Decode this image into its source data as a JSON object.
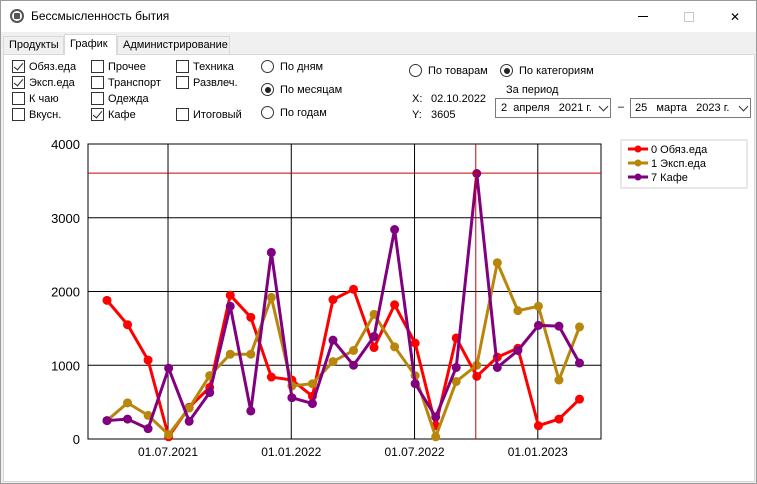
{
  "window": {
    "title": "Бессмысленность бытия",
    "close_glyph": "✕"
  },
  "tabs": [
    {
      "label": "Продукты",
      "active": false
    },
    {
      "label": "График",
      "active": true
    },
    {
      "label": "Администрирование",
      "active": false
    }
  ],
  "categories_checkboxes": [
    {
      "label": "Обяз.еда",
      "checked": true
    },
    {
      "label": "Эксп.еда",
      "checked": true
    },
    {
      "label": "К чаю",
      "checked": false
    },
    {
      "label": "Вкусн.",
      "checked": false
    },
    {
      "label": "Прочее",
      "checked": false
    },
    {
      "label": "Транспорт",
      "checked": false
    },
    {
      "label": "Одежда",
      "checked": false
    },
    {
      "label": "Кафе",
      "checked": true
    },
    {
      "label": "Техника",
      "checked": false
    },
    {
      "label": "Развлеч.",
      "checked": false
    },
    {
      "label": "Итоговый",
      "checked": false
    }
  ],
  "period_radios": [
    {
      "label": "По дням",
      "selected": false
    },
    {
      "label": "По месяцам",
      "selected": true
    },
    {
      "label": "По годам",
      "selected": false
    }
  ],
  "group_radios": [
    {
      "label": "По товарам",
      "selected": false
    },
    {
      "label": "По категориям",
      "selected": true
    }
  ],
  "cursor": {
    "x_label": "X:",
    "x_value": "02.10.2022",
    "y_label": "Y:",
    "y_value": "3605"
  },
  "period": {
    "label": "За период",
    "from": "2  апреля   2021 г.",
    "dash": "–",
    "to": "25   марта   2023 г."
  },
  "chart_data": {
    "type": "line",
    "y_ticks": [
      "0",
      "1000",
      "2000",
      "3000",
      "4000"
    ],
    "x_ticks": [
      "01.07.2021",
      "01.01.2022",
      "01.07.2022",
      "01.01.2023"
    ],
    "ylim": [
      0,
      4000
    ],
    "x_months": [
      "2021-04",
      "2021-05",
      "2021-06",
      "2021-07",
      "2021-08",
      "2021-09",
      "2021-10",
      "2021-11",
      "2021-12",
      "2022-01",
      "2022-02",
      "2022-03",
      "2022-04",
      "2022-05",
      "2022-06",
      "2022-07",
      "2022-08",
      "2022-09",
      "2022-10",
      "2022-11",
      "2022-12",
      "2023-01",
      "2023-02",
      "2023-03"
    ],
    "crosshair": {
      "x": "2022-10",
      "y": 3605
    },
    "legend": "top-right",
    "series": [
      {
        "name": "0 Обяз.еда",
        "color": "#ff0000",
        "values": [
          1880,
          1550,
          1070,
          30,
          430,
          700,
          1950,
          1650,
          840,
          800,
          580,
          1890,
          2030,
          1240,
          1820,
          1300,
          180,
          1370,
          850,
          1110,
          1230,
          180,
          270,
          540
        ]
      },
      {
        "name": "1 Эксп.еда",
        "color": "#b8860b",
        "values": [
          250,
          490,
          320,
          60,
          420,
          860,
          1150,
          1150,
          1920,
          720,
          750,
          1050,
          1200,
          1690,
          1250,
          860,
          30,
          780,
          1000,
          2390,
          1740,
          1800,
          800,
          1520
        ]
      },
      {
        "name": "7 Кафе",
        "color": "#800080",
        "values": [
          250,
          270,
          140,
          960,
          240,
          630,
          1800,
          380,
          2530,
          560,
          480,
          1340,
          1000,
          1390,
          2840,
          750,
          300,
          970,
          3600,
          970,
          1200,
          1540,
          1530,
          1030
        ]
      }
    ]
  }
}
